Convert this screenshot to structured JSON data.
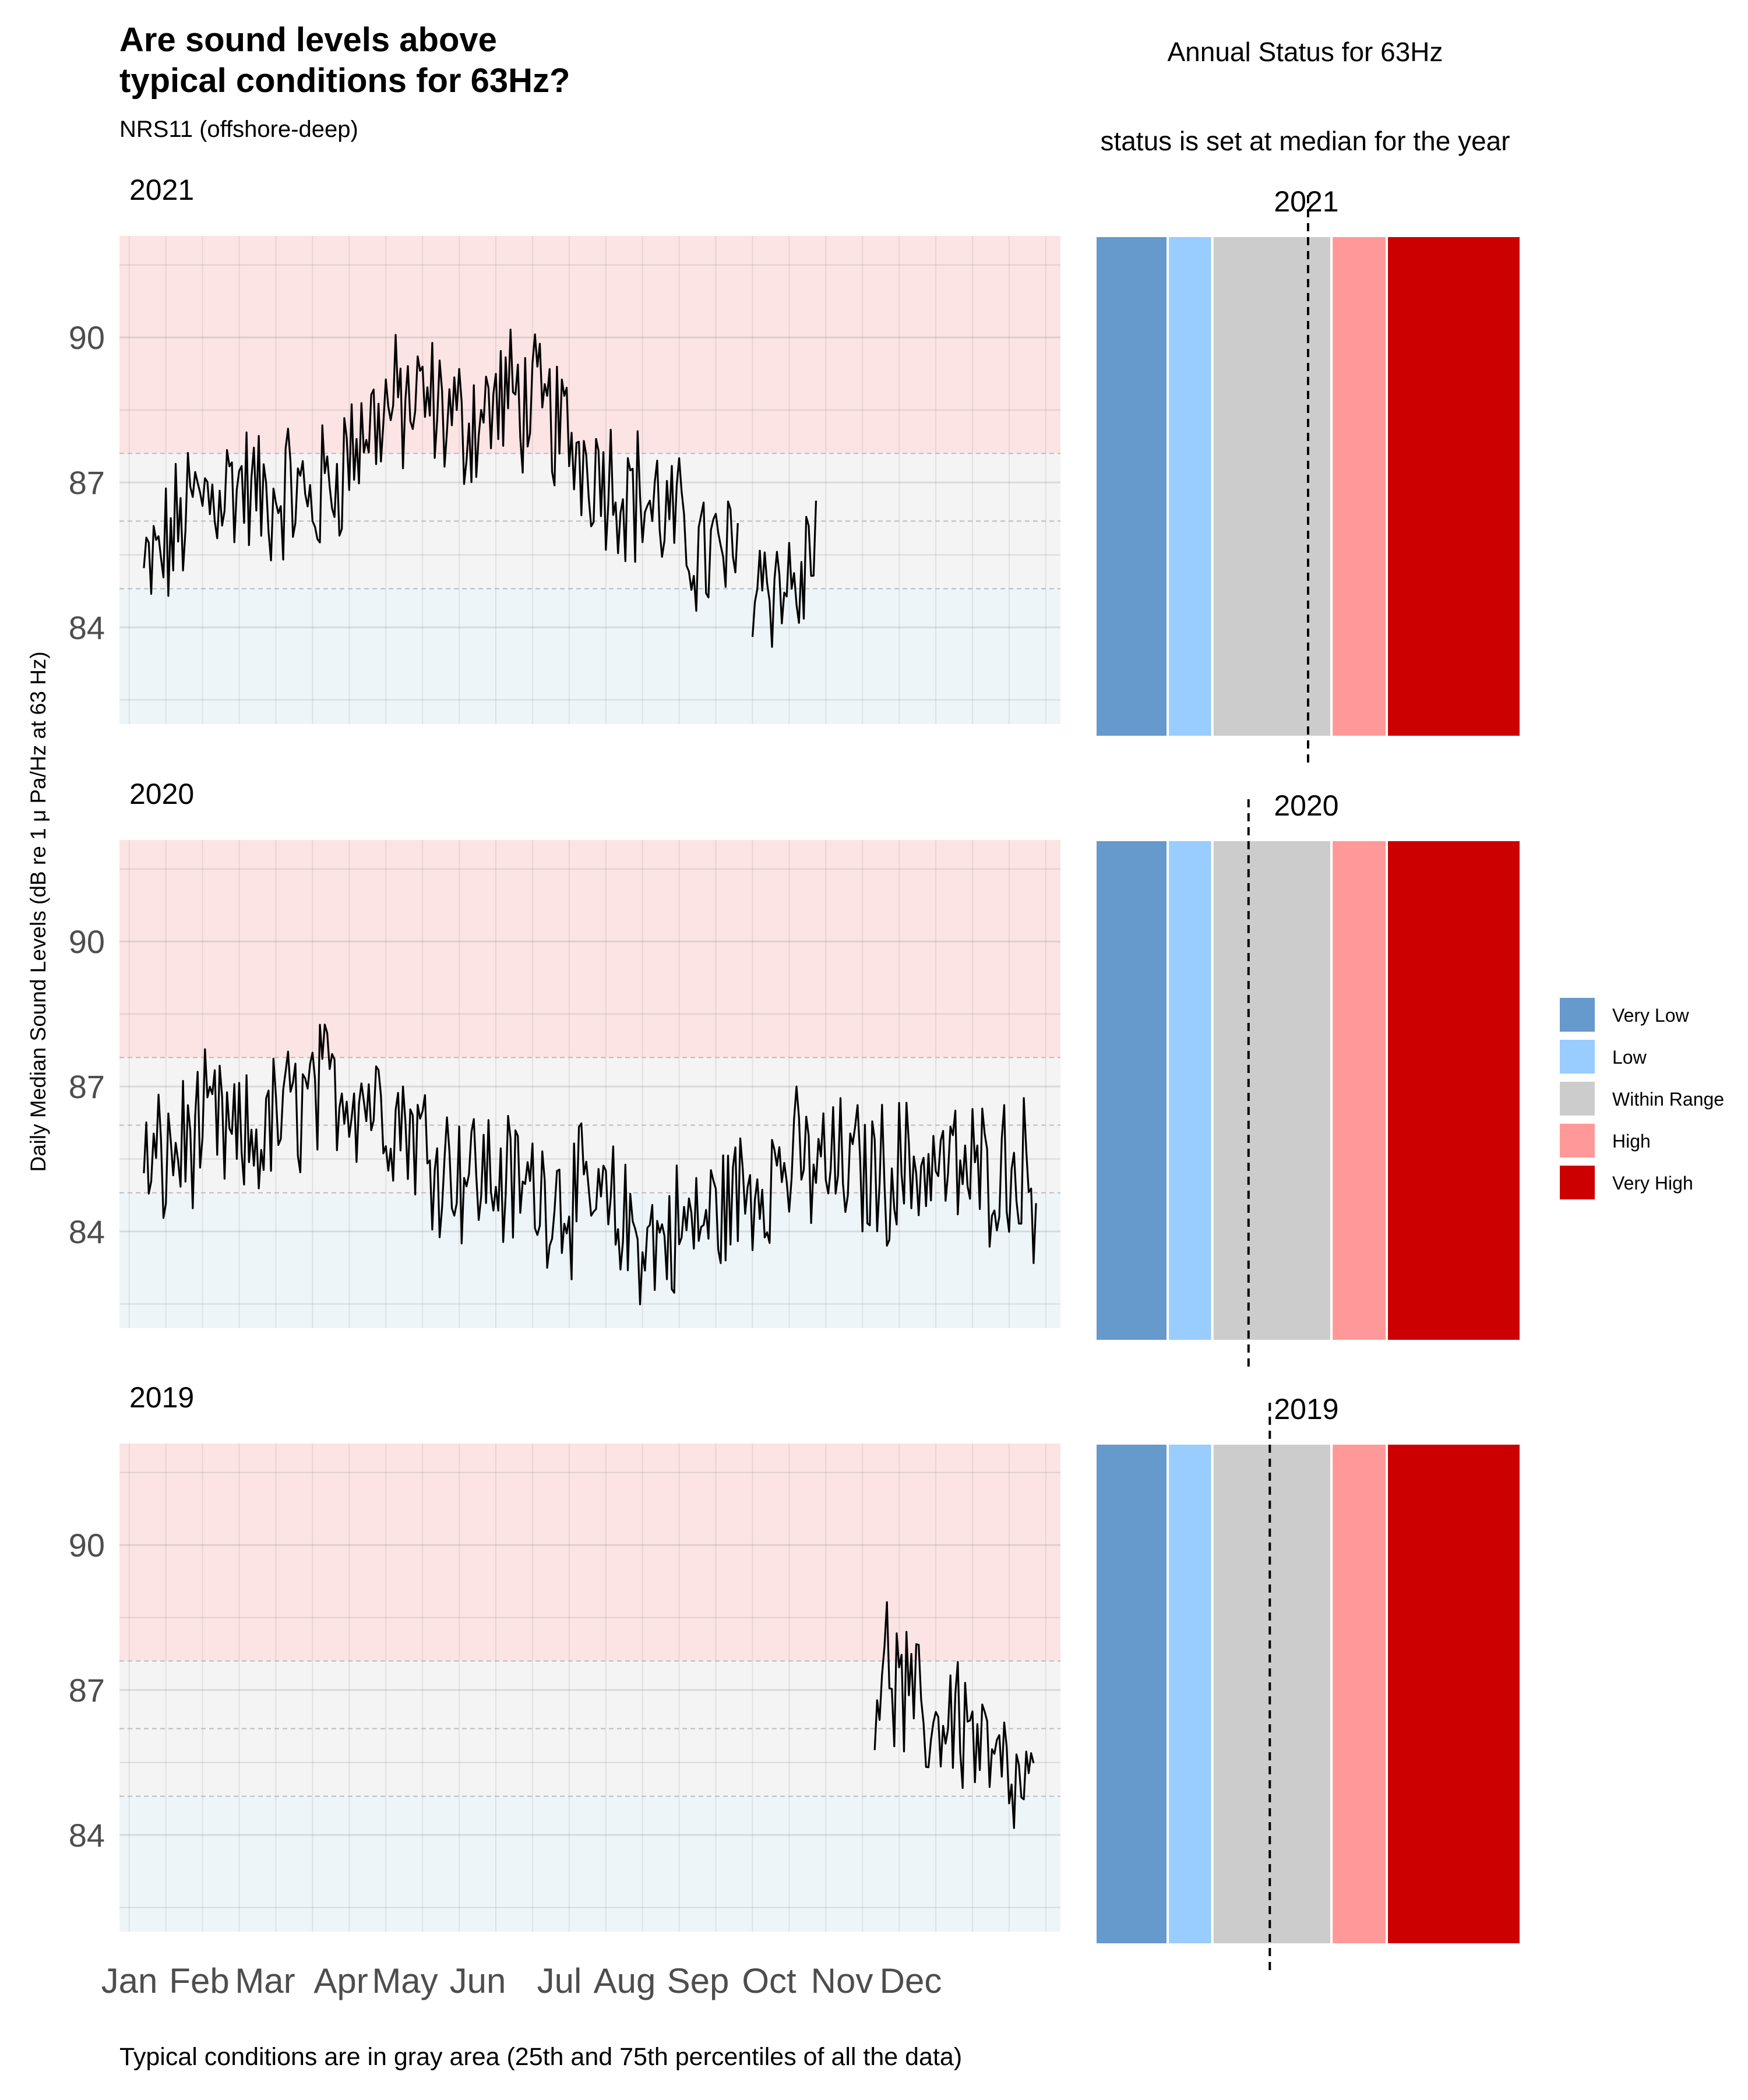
{
  "title_line1": "Are sound levels above",
  "title_line2": "typical conditions for 63Hz?",
  "subtitle": "NRS11 (offshore-deep)",
  "ylabel": "Daily Median Sound Levels (dB re 1 μ Pa/Hz at 63 Hz)",
  "caption": "Typical conditions are in gray area (25th and 75th percentiles of all the data)",
  "status_title": "Annual Status for 63Hz",
  "status_subtitle": "status is set at median for the year",
  "colors": {
    "above_band": "#fce4e4",
    "typical_band": "#f4f4f4",
    "below_band": "#eef5f9",
    "line": "#000000",
    "very_low": "#6699cc",
    "low": "#99ccff",
    "within_range": "#cccccc",
    "high": "#ff9999",
    "very_high": "#cc0000"
  },
  "legend": [
    {
      "label": "Very Low",
      "color": "#6699cc"
    },
    {
      "label": "Low",
      "color": "#99ccff"
    },
    {
      "label": "Within Range",
      "color": "#cccccc"
    },
    {
      "label": "High",
      "color": "#ff9999"
    },
    {
      "label": "Very High",
      "color": "#cc0000"
    }
  ],
  "chart_data": {
    "type": "line",
    "x_unit": "day of year",
    "y_ticks": [
      84,
      87,
      90
    ],
    "ylim": [
      82,
      92.1
    ],
    "typical_range": {
      "p25": 84.8,
      "p75": 87.6
    },
    "x_tick_labels": [
      "Jan",
      "Feb",
      "Mar",
      "Apr",
      "May",
      "Jun",
      "Jul",
      "Aug",
      "Sep",
      "Oct",
      "Nov",
      "Dec"
    ],
    "x_tick_days": [
      1,
      32,
      60,
      91,
      121,
      152,
      182,
      213,
      244,
      274,
      305,
      335
    ],
    "years": [
      {
        "year": "2021",
        "status_median_position": 0.5,
        "anchors": [
          [
            1,
            85.0
          ],
          [
            10,
            85.6
          ],
          [
            20,
            86.5
          ],
          [
            30,
            86.8
          ],
          [
            40,
            87.0
          ],
          [
            50,
            86.6
          ],
          [
            60,
            86.9
          ],
          [
            70,
            86.5
          ],
          [
            80,
            87.2
          ],
          [
            90,
            88.0
          ],
          [
            100,
            88.5
          ],
          [
            110,
            88.6
          ],
          [
            120,
            88.6
          ],
          [
            130,
            88.2
          ],
          [
            140,
            88.4
          ],
          [
            150,
            88.8
          ],
          [
            160,
            88.6
          ],
          [
            170,
            88.2
          ],
          [
            180,
            87.6
          ],
          [
            190,
            87.2
          ],
          [
            200,
            86.8
          ],
          [
            210,
            86.5
          ],
          [
            220,
            86.0
          ],
          [
            230,
            85.5
          ],
          [
            240,
            85.4
          ],
          [
            250,
            85.2
          ],
          [
            260,
            85.0
          ],
          [
            270,
            84.7
          ],
          [
            276,
            86.2
          ]
        ],
        "gaps": [
          [
            245,
            249
          ]
        ]
      },
      {
        "year": "2020",
        "status_median_position": 0.36,
        "anchors": [
          [
            1,
            85.1
          ],
          [
            10,
            85.5
          ],
          [
            20,
            85.9
          ],
          [
            30,
            86.2
          ],
          [
            40,
            85.7
          ],
          [
            50,
            86.0
          ],
          [
            60,
            86.5
          ],
          [
            70,
            86.8
          ],
          [
            80,
            87.0
          ],
          [
            90,
            86.9
          ],
          [
            100,
            86.6
          ],
          [
            110,
            86.2
          ],
          [
            120,
            85.6
          ],
          [
            130,
            85.3
          ],
          [
            140,
            85.2
          ],
          [
            150,
            85.0
          ],
          [
            160,
            84.9
          ],
          [
            170,
            84.8
          ],
          [
            180,
            84.6
          ],
          [
            190,
            84.4
          ],
          [
            200,
            84.0
          ],
          [
            210,
            83.8
          ],
          [
            220,
            84.0
          ],
          [
            230,
            84.2
          ],
          [
            240,
            84.6
          ],
          [
            250,
            85.0
          ],
          [
            260,
            85.3
          ],
          [
            270,
            85.4
          ],
          [
            280,
            85.3
          ],
          [
            290,
            85.3
          ],
          [
            300,
            85.2
          ],
          [
            310,
            85.3
          ],
          [
            320,
            85.4
          ],
          [
            330,
            85.3
          ],
          [
            340,
            85.2
          ],
          [
            350,
            85.3
          ],
          [
            360,
            85.4
          ],
          [
            366,
            84.8
          ]
        ],
        "gaps": []
      },
      {
        "year": "2019",
        "status_median_position": 0.41,
        "anchors": [
          [
            300,
            87.0
          ],
          [
            305,
            87.5
          ],
          [
            310,
            87.0
          ],
          [
            315,
            86.6
          ],
          [
            320,
            86.4
          ],
          [
            325,
            86.2
          ],
          [
            330,
            86.6
          ],
          [
            335,
            86.4
          ],
          [
            340,
            86.1
          ],
          [
            345,
            85.6
          ],
          [
            350,
            85.3
          ],
          [
            355,
            85.0
          ],
          [
            360,
            84.8
          ],
          [
            365,
            84.7
          ]
        ],
        "gaps": []
      }
    ],
    "status_bands": [
      {
        "name": "Very Low",
        "color": "#6699cc",
        "width": 0.17
      },
      {
        "name": "Low",
        "color": "#99ccff",
        "width": 0.105
      },
      {
        "name": "Within Range",
        "color": "#cccccc",
        "width": 0.28
      },
      {
        "name": "High",
        "color": "#ff9999",
        "width": 0.13
      },
      {
        "name": "Very High",
        "color": "#cc0000",
        "width": 0.315
      }
    ]
  }
}
